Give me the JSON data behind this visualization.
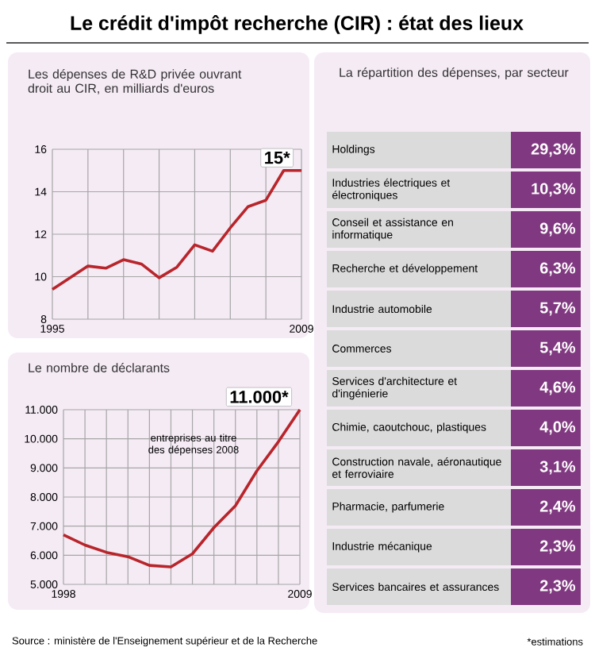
{
  "chart_data": [
    {
      "type": "line",
      "title": "Le crédit d'impôt recherche (CIR) : état des lieux",
      "subtitle": "Les dépenses de R&D privée ouvrant droit au CIR, en milliards d'euros",
      "x": [
        1995,
        1996,
        1997,
        1998,
        1999,
        2000,
        2001,
        2002,
        2003,
        2004,
        2005,
        2006,
        2007,
        2008,
        2009
      ],
      "series": [
        {
          "color": "#b8252b",
          "values": [
            9.4,
            9.95,
            10.5,
            10.4,
            10.8,
            10.6,
            9.95,
            10.45,
            11.5,
            11.2,
            12.3,
            13.3,
            13.6,
            15,
            15
          ]
        }
      ],
      "xlim": [
        1995,
        2009
      ],
      "xticks": [
        1995,
        {
          "value": 1997,
          "label": null
        },
        {
          "value": 1999,
          "label": null
        },
        {
          "value": 2001,
          "label": null
        },
        {
          "value": 2003,
          "label": null
        },
        {
          "value": 2005,
          "label": null
        },
        {
          "value": 2007,
          "label": null
        },
        2009
      ],
      "ylim": [
        8,
        16
      ],
      "yticks": [
        8,
        10,
        12,
        14,
        16
      ],
      "grid": true,
      "annotations": [
        {
          "text": "15*",
          "x": 2009,
          "y": 15
        }
      ]
    },
    {
      "type": "line",
      "title": "Le nombre de déclarants",
      "x": [
        1998,
        1999,
        2000,
        2001,
        2002,
        2003,
        2004,
        2005,
        2006,
        2007,
        2008,
        2009
      ],
      "series": [
        {
          "color": "#b8252b",
          "values": [
            6700,
            6350,
            6100,
            5950,
            5650,
            5600,
            6050,
            6950,
            7700,
            8900,
            9900,
            11000
          ]
        }
      ],
      "xlim": [
        1998,
        2009
      ],
      "xticks": [
        1998,
        {
          "value": 1999,
          "label": null
        },
        {
          "value": 2000,
          "label": null
        },
        {
          "value": 2001,
          "label": null
        },
        {
          "value": 2002,
          "label": null
        },
        {
          "value": 2003,
          "label": null
        },
        {
          "value": 2004,
          "label": null
        },
        {
          "value": 2005,
          "label": null
        },
        {
          "value": 2006,
          "label": null
        },
        {
          "value": 2007,
          "label": null
        },
        {
          "value": 2008,
          "label": null
        },
        2009
      ],
      "ylim": [
        5000,
        11000
      ],
      "yticks": [
        {
          "value": 5000,
          "label": "5.000"
        },
        {
          "value": 6000,
          "label": "6.000"
        },
        {
          "value": 7000,
          "label": "7.000"
        },
        {
          "value": 8000,
          "label": "8.000"
        },
        {
          "value": 9000,
          "label": "9.000"
        },
        {
          "value": 10000,
          "label": "10.000"
        },
        {
          "value": 11000,
          "label": "11.000"
        }
      ],
      "grid": true,
      "annotations": [
        {
          "text": "11.000*",
          "x": 2009,
          "y": 11000
        },
        "entreprises au titre des dépenses 2008",
        "Source : ministère de l'Enseignement supérieur et de la Recherche"
      ]
    },
    {
      "type": "other",
      "title": "La répartition des dépenses, par secteur",
      "categories": [
        "Holdings",
        "Industries électriques et électroniques",
        "Conseil et assistance en informatique",
        "Recherche et développement",
        "Industrie automobile",
        "Commerces",
        "Services d'architecture et d'ingénierie",
        "Chimie, caoutchouc, plastiques",
        "Construction navale, aéronautique et ferroviaire",
        "Pharmacie, parfumerie",
        "Industrie mécanique",
        "Services bancaires et assurances"
      ],
      "value_labels": [
        "29,3%",
        "10,3%",
        "9,6%",
        "6,3%",
        "5,7%",
        "5,4%",
        "4,6%",
        "4,0%",
        "3,1%",
        "2,4%",
        "2,3%",
        "2,3%"
      ],
      "annotations": [
        "*estimations"
      ]
    }
  ]
}
